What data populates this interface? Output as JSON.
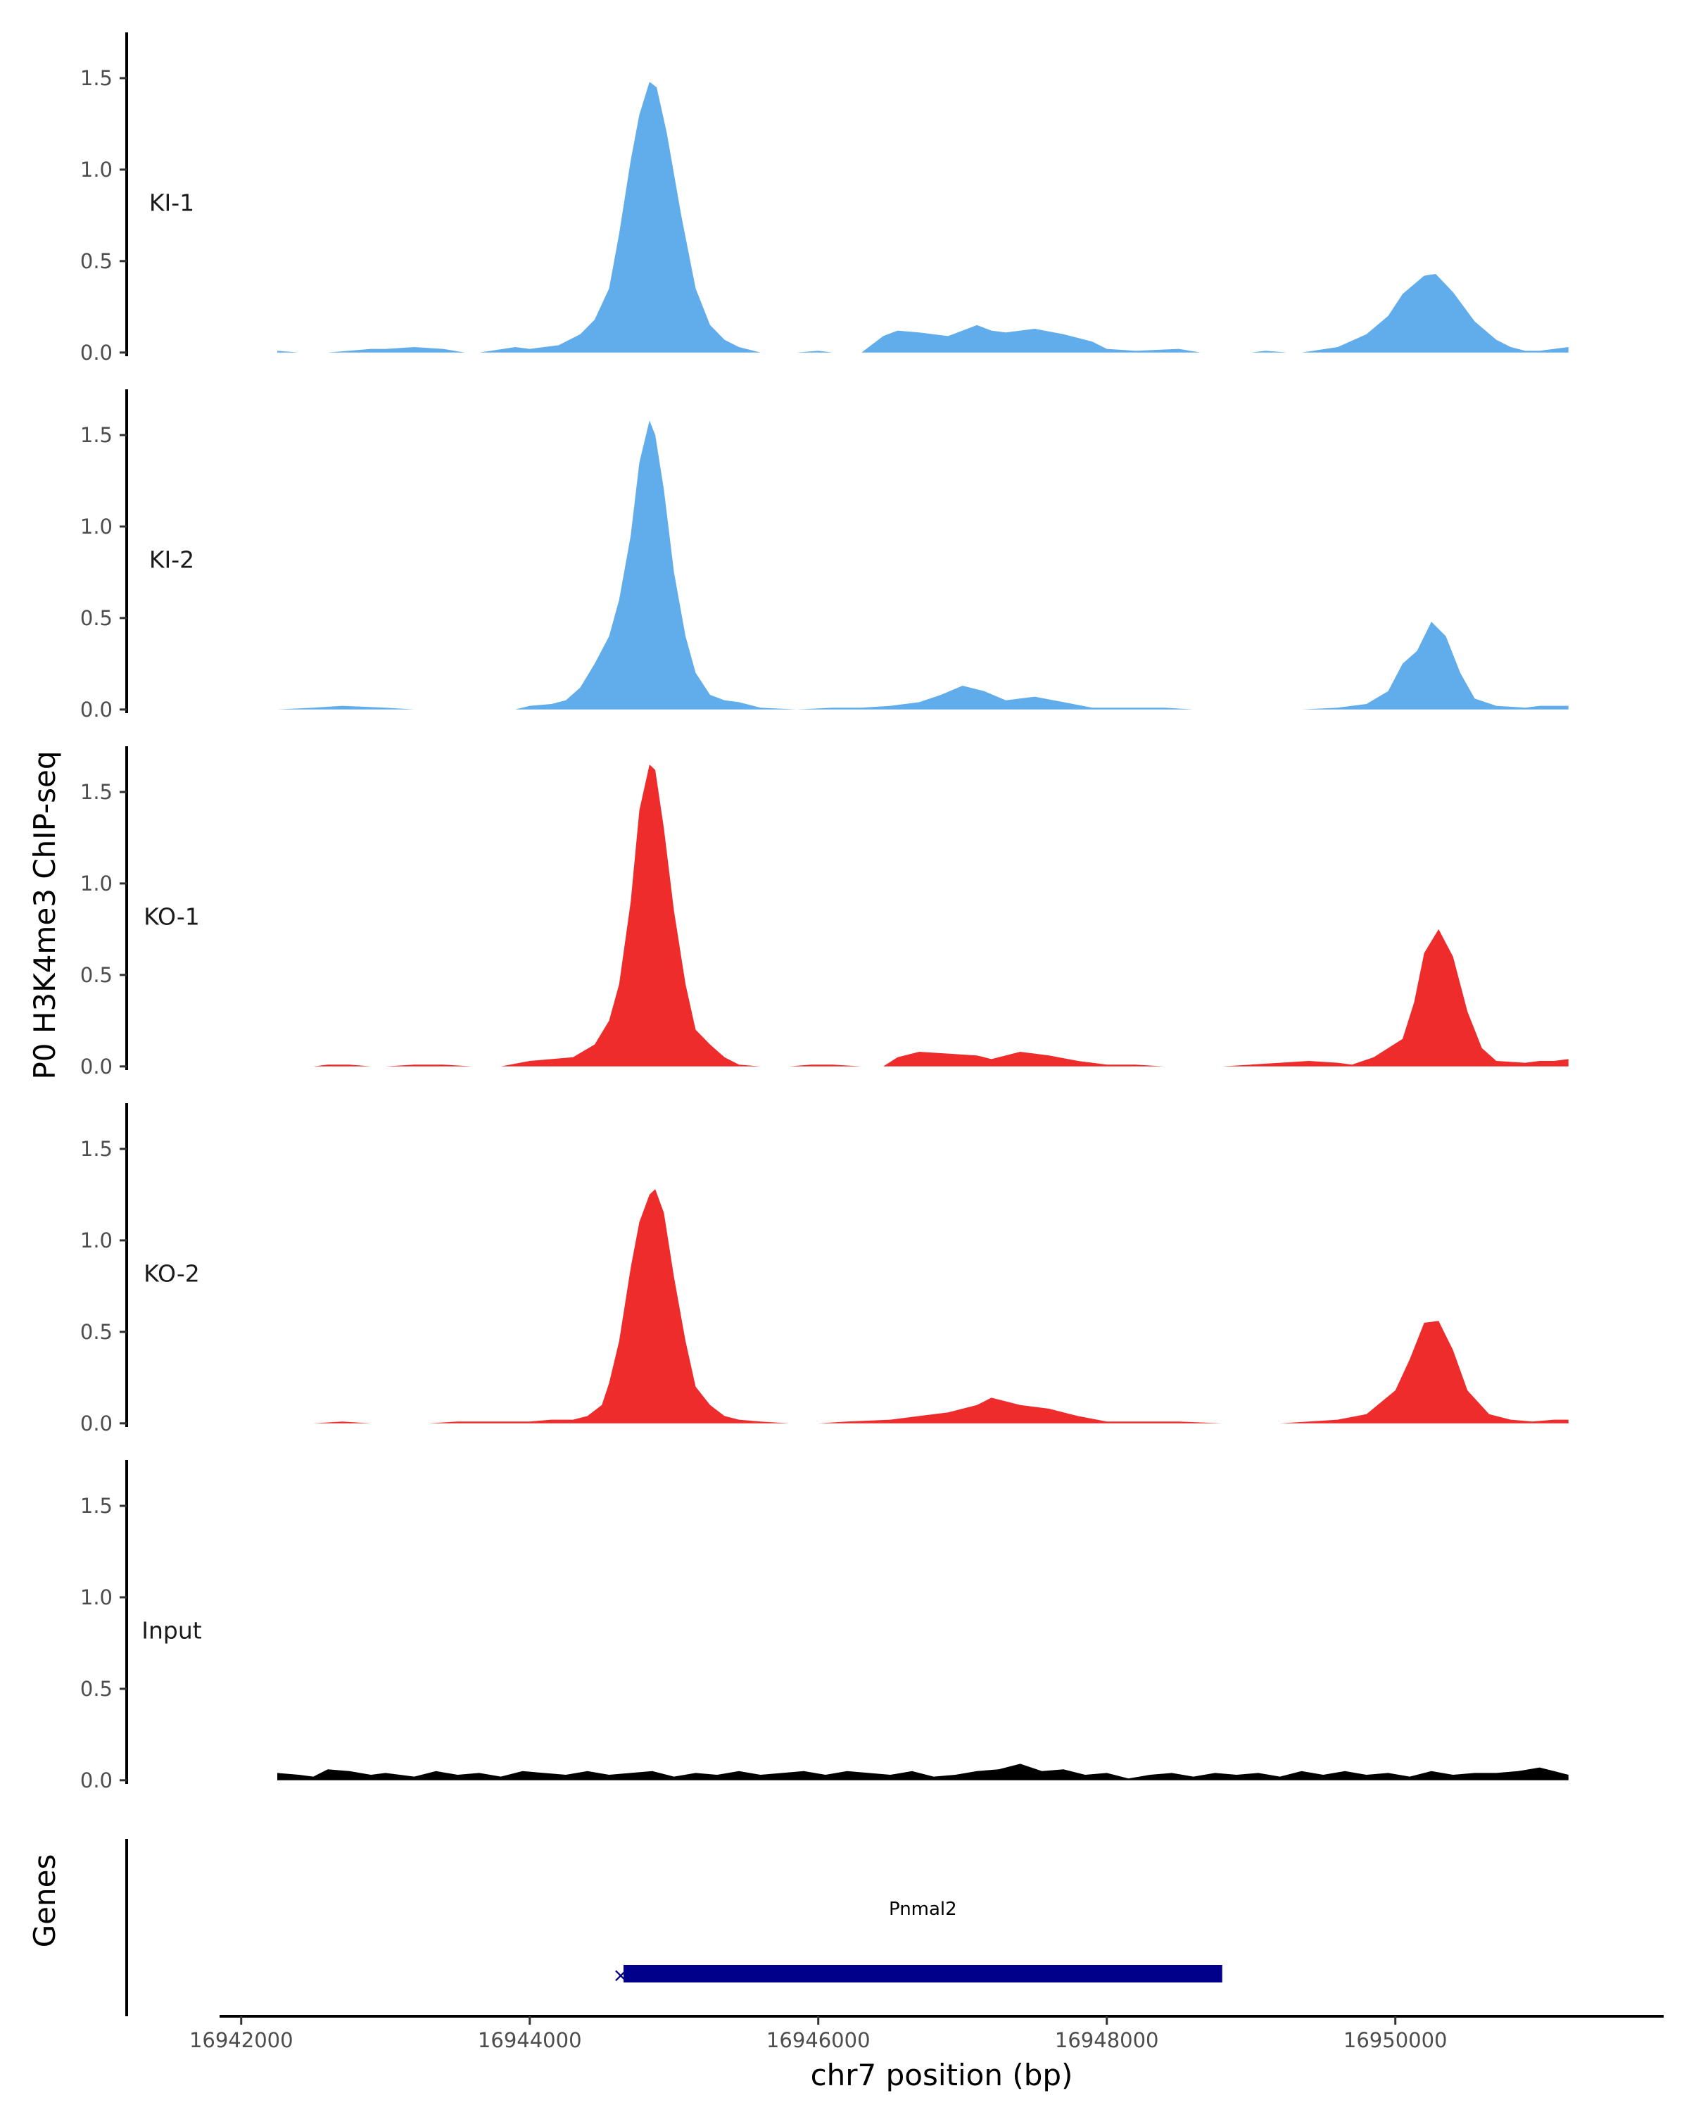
{
  "chart_data": {
    "type": "area",
    "ylabel": "P0 H3K4me3 ChIP-seq",
    "xlabel": "chr7 position (bp)",
    "genes_label": "Genes",
    "xlim": [
      16941850,
      16951860
    ],
    "ylim": [
      -0.02,
      1.75
    ],
    "y_ticks": [
      0.0,
      0.5,
      1.0,
      1.5
    ],
    "y_tick_labels": [
      "0.0",
      "0.5",
      "1.0",
      "1.5"
    ],
    "x_ticks": [
      16942000,
      16944000,
      16946000,
      16948000,
      16950000
    ],
    "x_tick_labels": [
      "16942000",
      "16944000",
      "16946000",
      "16948000",
      "16950000"
    ],
    "tracks": [
      {
        "name": "KI-1",
        "color": "#61ADEC",
        "x": [
          16942250,
          16942400,
          16942500,
          16942600,
          16942900,
          16943000,
          16943200,
          16943400,
          16943550,
          16943650,
          16943900,
          16944000,
          16944200,
          16944350,
          16944450,
          16944550,
          16944620,
          16944700,
          16944760,
          16944830,
          16944880,
          16944950,
          16945050,
          16945150,
          16945250,
          16945350,
          16945450,
          16945600,
          16945850,
          16946000,
          16946100,
          16946300,
          16946450,
          16946550,
          16946700,
          16946900,
          16947000,
          16947100,
          16947200,
          16947300,
          16947500,
          16947700,
          16947900,
          16948000,
          16948200,
          16948500,
          16948650,
          16948800,
          16949000,
          16949100,
          16949250,
          16949350,
          16949600,
          16949800,
          16949950,
          16950050,
          16950200,
          16950280,
          16950400,
          16950550,
          16950700,
          16950800,
          16950900,
          16951000,
          16951100,
          16951200
        ],
        "y": [
          0.01,
          0.0,
          0.0,
          0.0,
          0.02,
          0.02,
          0.03,
          0.02,
          0.0,
          0.0,
          0.03,
          0.02,
          0.04,
          0.1,
          0.18,
          0.35,
          0.65,
          1.05,
          1.3,
          1.48,
          1.45,
          1.2,
          0.75,
          0.35,
          0.15,
          0.07,
          0.03,
          0.0,
          0.0,
          0.01,
          0.0,
          0.0,
          0.09,
          0.12,
          0.11,
          0.09,
          0.12,
          0.15,
          0.12,
          0.11,
          0.13,
          0.1,
          0.06,
          0.02,
          0.01,
          0.02,
          0.0,
          0.0,
          0.0,
          0.01,
          0.0,
          0.0,
          0.03,
          0.1,
          0.2,
          0.32,
          0.42,
          0.43,
          0.33,
          0.17,
          0.07,
          0.03,
          0.01,
          0.01,
          0.02,
          0.03
        ]
      },
      {
        "name": "KI-2",
        "color": "#61ADEC",
        "x": [
          16942250,
          16942500,
          16942700,
          16943000,
          16943200,
          16943400,
          16943650,
          16943900,
          16944000,
          16944150,
          16944250,
          16944350,
          16944450,
          16944550,
          16944620,
          16944700,
          16944760,
          16944830,
          16944870,
          16944930,
          16945000,
          16945080,
          16945150,
          16945250,
          16945350,
          16945450,
          16945600,
          16945850,
          16946100,
          16946300,
          16946500,
          16946700,
          16946850,
          16947000,
          16947150,
          16947300,
          16947500,
          16947700,
          16947900,
          16948200,
          16948400,
          16948600,
          16948800,
          16949000,
          16949200,
          16949350,
          16949600,
          16949800,
          16949950,
          16950050,
          16950150,
          16950250,
          16950350,
          16950450,
          16950550,
          16950700,
          16950900,
          16951000,
          16951100,
          16951200
        ],
        "y": [
          0.0,
          0.01,
          0.02,
          0.01,
          0.0,
          0.0,
          0.0,
          0.0,
          0.02,
          0.03,
          0.05,
          0.12,
          0.25,
          0.4,
          0.6,
          0.95,
          1.35,
          1.58,
          1.5,
          1.2,
          0.75,
          0.4,
          0.2,
          0.08,
          0.05,
          0.04,
          0.01,
          0.0,
          0.01,
          0.01,
          0.02,
          0.04,
          0.08,
          0.13,
          0.1,
          0.05,
          0.07,
          0.04,
          0.01,
          0.01,
          0.01,
          0.0,
          0.0,
          0.0,
          0.0,
          0.0,
          0.01,
          0.03,
          0.1,
          0.25,
          0.32,
          0.48,
          0.4,
          0.2,
          0.06,
          0.02,
          0.01,
          0.02,
          0.02,
          0.02
        ]
      },
      {
        "name": "KO-1",
        "color": "#EE2C2C",
        "x": [
          16942250,
          16942500,
          16942600,
          16942750,
          16942900,
          16943000,
          16943200,
          16943400,
          16943600,
          16943800,
          16944000,
          16944150,
          16944300,
          16944450,
          16944550,
          16944620,
          16944700,
          16944760,
          16944830,
          16944870,
          16944930,
          16945000,
          16945080,
          16945150,
          16945250,
          16945350,
          16945450,
          16945600,
          16945800,
          16945950,
          16946100,
          16946300,
          16946450,
          16946550,
          16946700,
          16946900,
          16947100,
          16947200,
          16947400,
          16947600,
          16947800,
          16947900,
          16948000,
          16948200,
          16948400,
          16948800,
          16949000,
          16949200,
          16949400,
          16949600,
          16949700,
          16949850,
          16949950,
          16950050,
          16950130,
          16950200,
          16950300,
          16950400,
          16950500,
          16950600,
          16950700,
          16950900,
          16951000,
          16951100,
          16951200
        ],
        "y": [
          0.0,
          0.0,
          0.01,
          0.01,
          0.0,
          0.0,
          0.01,
          0.01,
          0.0,
          0.0,
          0.03,
          0.04,
          0.05,
          0.12,
          0.25,
          0.45,
          0.9,
          1.4,
          1.65,
          1.62,
          1.3,
          0.85,
          0.45,
          0.2,
          0.12,
          0.05,
          0.01,
          0.0,
          0.0,
          0.01,
          0.01,
          0.0,
          0.0,
          0.05,
          0.08,
          0.07,
          0.06,
          0.04,
          0.08,
          0.06,
          0.03,
          0.02,
          0.01,
          0.01,
          0.0,
          0.0,
          0.01,
          0.02,
          0.03,
          0.02,
          0.01,
          0.05,
          0.1,
          0.15,
          0.35,
          0.62,
          0.75,
          0.6,
          0.3,
          0.1,
          0.03,
          0.02,
          0.03,
          0.03,
          0.04
        ]
      },
      {
        "name": "KO-2",
        "color": "#EE2C2C",
        "x": [
          16942250,
          16942500,
          16942700,
          16942900,
          16943100,
          16943300,
          16943500,
          16943700,
          16943900,
          16944000,
          16944150,
          16944300,
          16944400,
          16944500,
          16944550,
          16944620,
          16944700,
          16944760,
          16944830,
          16944870,
          16944930,
          16945000,
          16945080,
          16945150,
          16945250,
          16945350,
          16945450,
          16945600,
          16945800,
          16946000,
          16946200,
          16946500,
          16946700,
          16946900,
          16947100,
          16947200,
          16947400,
          16947600,
          16947800,
          16948000,
          16948200,
          16948500,
          16948800,
          16949000,
          16949200,
          16949400,
          16949600,
          16949800,
          16950000,
          16950100,
          16950200,
          16950300,
          16950400,
          16950500,
          16950650,
          16950800,
          16950950,
          16951100,
          16951200
        ],
        "y": [
          0.0,
          0.0,
          0.01,
          0.0,
          0.0,
          0.0,
          0.01,
          0.01,
          0.01,
          0.01,
          0.02,
          0.02,
          0.04,
          0.1,
          0.22,
          0.45,
          0.85,
          1.1,
          1.25,
          1.28,
          1.15,
          0.8,
          0.45,
          0.2,
          0.1,
          0.04,
          0.02,
          0.01,
          0.0,
          0.0,
          0.01,
          0.02,
          0.04,
          0.06,
          0.1,
          0.14,
          0.1,
          0.08,
          0.04,
          0.01,
          0.01,
          0.01,
          0.0,
          0.0,
          0.0,
          0.01,
          0.02,
          0.05,
          0.18,
          0.35,
          0.55,
          0.56,
          0.4,
          0.18,
          0.05,
          0.02,
          0.01,
          0.02,
          0.02
        ]
      },
      {
        "name": "Input",
        "color": "#000000",
        "x": [
          16942250,
          16942400,
          16942500,
          16942600,
          16942750,
          16942900,
          16943000,
          16943200,
          16943350,
          16943500,
          16943650,
          16943800,
          16943950,
          16944100,
          16944250,
          16944400,
          16944550,
          16944700,
          16944850,
          16945000,
          16945150,
          16945300,
          16945450,
          16945600,
          16945750,
          16945900,
          16946050,
          16946200,
          16946350,
          16946500,
          16946650,
          16946800,
          16946950,
          16947100,
          16947250,
          16947400,
          16947550,
          16947700,
          16947850,
          16948000,
          16948150,
          16948300,
          16948450,
          16948600,
          16948750,
          16948900,
          16949050,
          16949200,
          16949350,
          16949500,
          16949650,
          16949800,
          16949950,
          16950100,
          16950250,
          16950400,
          16950550,
          16950700,
          16950850,
          16951000,
          16951100,
          16951200
        ],
        "y": [
          0.04,
          0.03,
          0.02,
          0.06,
          0.05,
          0.03,
          0.04,
          0.02,
          0.05,
          0.03,
          0.04,
          0.02,
          0.05,
          0.04,
          0.03,
          0.05,
          0.03,
          0.04,
          0.05,
          0.02,
          0.04,
          0.03,
          0.05,
          0.03,
          0.04,
          0.05,
          0.03,
          0.05,
          0.04,
          0.03,
          0.05,
          0.02,
          0.03,
          0.05,
          0.06,
          0.09,
          0.05,
          0.06,
          0.03,
          0.04,
          0.01,
          0.03,
          0.04,
          0.02,
          0.04,
          0.03,
          0.04,
          0.02,
          0.05,
          0.03,
          0.05,
          0.03,
          0.04,
          0.02,
          0.05,
          0.03,
          0.04,
          0.04,
          0.05,
          0.07,
          0.05,
          0.03
        ]
      }
    ],
    "gene": {
      "name": "Pnmal2",
      "start": 16944650,
      "end": 16948800,
      "color": "#00008B"
    }
  }
}
